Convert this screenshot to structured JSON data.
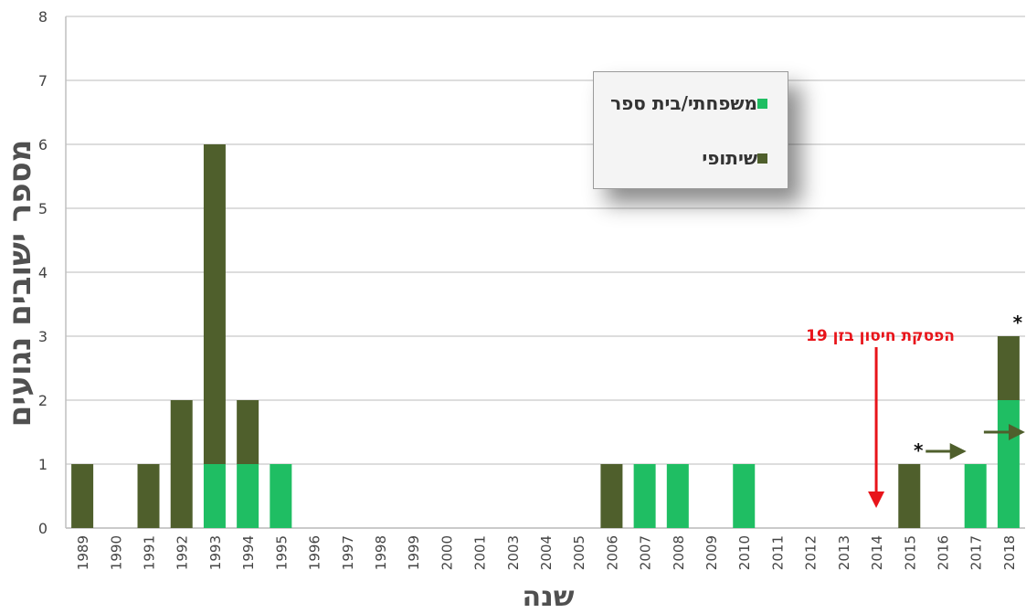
{
  "chart_data": {
    "type": "bar",
    "stacked": true,
    "categories": [
      "1989",
      "1990",
      "1991",
      "1992",
      "1993",
      "1994",
      "1995",
      "1996",
      "1997",
      "1998",
      "1999",
      "2000",
      "2001",
      "2003",
      "2004",
      "2005",
      "2006",
      "2007",
      "2008",
      "2009",
      "2010",
      "2011",
      "2012",
      "2013",
      "2014",
      "2015",
      "2016",
      "2017",
      "2018"
    ],
    "series": [
      {
        "name": "משפחתי/בית ספר",
        "color": "#1fbe63",
        "values": [
          0,
          0,
          0,
          0,
          1,
          1,
          1,
          0,
          0,
          0,
          0,
          0,
          0,
          0,
          0,
          0,
          0,
          1,
          1,
          0,
          1,
          0,
          0,
          0,
          0,
          0,
          0,
          1,
          2
        ]
      },
      {
        "name": "שיתופי",
        "color": "#4f5f2c",
        "values": [
          1,
          0,
          1,
          2,
          5,
          1,
          0,
          0,
          0,
          0,
          0,
          0,
          0,
          0,
          0,
          0,
          1,
          0,
          0,
          0,
          0,
          0,
          0,
          0,
          0,
          1,
          0,
          0,
          1
        ]
      }
    ],
    "xlabel": "שנה",
    "ylabel": "מספר ישובים נגועים",
    "ylim": [
      0,
      8
    ],
    "yticks": [
      "0",
      "1",
      "2",
      "3",
      "4",
      "5",
      "6",
      "7",
      "8"
    ],
    "grid": true,
    "legend_position": "top-right",
    "annotations": {
      "text": "הפסקת חיסון בזן 19",
      "year": "2014",
      "star_marks": [
        {
          "year": "2015",
          "symbol": "*"
        },
        {
          "year": "2018",
          "symbol": "*"
        }
      ],
      "arrows": [
        {
          "from": "2015",
          "to": "2017"
        },
        {
          "at": "2018"
        }
      ]
    }
  }
}
